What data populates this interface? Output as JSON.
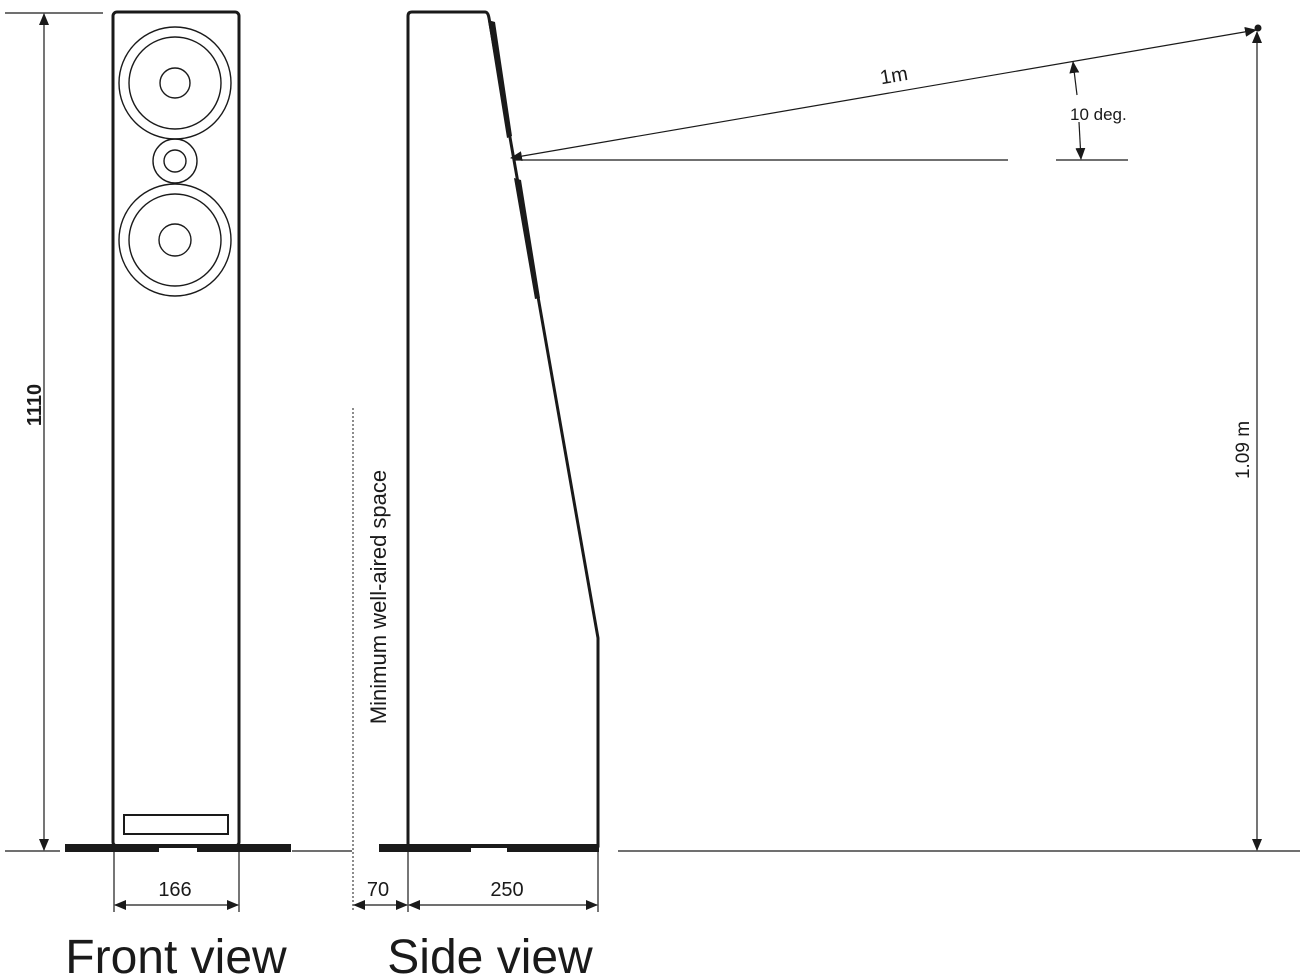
{
  "dimensions": {
    "height": "1110",
    "front_width": "166",
    "wall_gap": "70",
    "side_depth": "250",
    "listening_height": "1.09 m",
    "distance": "1m",
    "angle": "10 deg."
  },
  "labels": {
    "wall_space": "Minimum well-aired space",
    "front_view": "Front view",
    "side_view": "Side view"
  },
  "colors": {
    "line": "#1a1a1a",
    "background": "#ffffff"
  }
}
